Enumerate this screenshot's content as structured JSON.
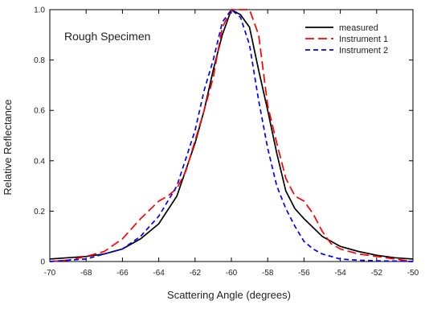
{
  "chart_data": {
    "type": "line",
    "annotation": "Rough Specimen",
    "xlabel": "Scattering Angle (degrees)",
    "ylabel": "Relative Reflectance",
    "xlim": [
      -70,
      -50
    ],
    "ylim": [
      0,
      1.0
    ],
    "x_ticks": [
      -70,
      -68,
      -66,
      -64,
      -62,
      -60,
      -58,
      -56,
      -54,
      -52,
      -50
    ],
    "x_tick_labels": [
      "-70",
      "-68",
      "-66",
      "-64",
      "-62",
      "-60",
      "-58",
      "-56",
      "-54",
      "-52",
      "-50"
    ],
    "y_ticks": [
      0,
      0.2,
      0.4,
      0.6,
      0.8,
      1.0
    ],
    "y_tick_labels": [
      "0",
      "0.2",
      "0.4",
      "0.6",
      "0.8",
      "1.0"
    ],
    "grid": false,
    "legend_position": "top-right",
    "series": [
      {
        "name": "measured",
        "color": "#000000",
        "dash": "solid",
        "x": [
          -70,
          -69,
          -68,
          -67,
          -66,
          -65,
          -64,
          -63,
          -62,
          -61.5,
          -61,
          -60.5,
          -60,
          -59.5,
          -59,
          -58.5,
          -58,
          -57.5,
          -57,
          -56.5,
          -56,
          -55,
          -54,
          -53,
          -52,
          -51,
          -50
        ],
        "y": [
          0.01,
          0.015,
          0.02,
          0.03,
          0.05,
          0.09,
          0.15,
          0.26,
          0.47,
          0.6,
          0.76,
          0.9,
          1.0,
          0.98,
          0.93,
          0.76,
          0.6,
          0.43,
          0.28,
          0.21,
          0.17,
          0.1,
          0.06,
          0.04,
          0.025,
          0.015,
          0.01
        ]
      },
      {
        "name": "Instrument 1",
        "color": "#ff0000",
        "dash": "long-dash",
        "x": [
          -70,
          -69,
          -68,
          -67,
          -66,
          -65,
          -64,
          -63.5,
          -63,
          -62.5,
          -62,
          -61.5,
          -61,
          -60.5,
          -60,
          -59.5,
          -59,
          -58.5,
          -58,
          -57.5,
          -57,
          -56.5,
          -56,
          -55.5,
          -55,
          -54.5,
          -54,
          -53,
          -52,
          -51,
          -50
        ],
        "y": [
          0.0,
          0.005,
          0.02,
          0.04,
          0.09,
          0.17,
          0.24,
          0.26,
          0.29,
          0.36,
          0.48,
          0.6,
          0.73,
          0.93,
          1.0,
          1.0,
          1.0,
          0.9,
          0.62,
          0.47,
          0.33,
          0.26,
          0.24,
          0.19,
          0.12,
          0.07,
          0.05,
          0.03,
          0.02,
          0.01,
          0.0
        ]
      },
      {
        "name": "Instrument 2",
        "color": "#0000ff",
        "dash": "short-dash",
        "x": [
          -70,
          -69,
          -68,
          -67,
          -66,
          -65,
          -64,
          -63,
          -62,
          -61.5,
          -61,
          -60.5,
          -60,
          -59.5,
          -59,
          -58.5,
          -58,
          -57.5,
          -57,
          -56.5,
          -56,
          -55.5,
          -55,
          -54,
          -53,
          -52,
          -51,
          -50
        ],
        "y": [
          0.0,
          0.005,
          0.01,
          0.03,
          0.05,
          0.1,
          0.18,
          0.3,
          0.52,
          0.68,
          0.8,
          0.95,
          1.0,
          0.97,
          0.86,
          0.64,
          0.45,
          0.3,
          0.21,
          0.14,
          0.08,
          0.05,
          0.03,
          0.01,
          0.005,
          0.003,
          0.002,
          0.0
        ]
      }
    ]
  }
}
